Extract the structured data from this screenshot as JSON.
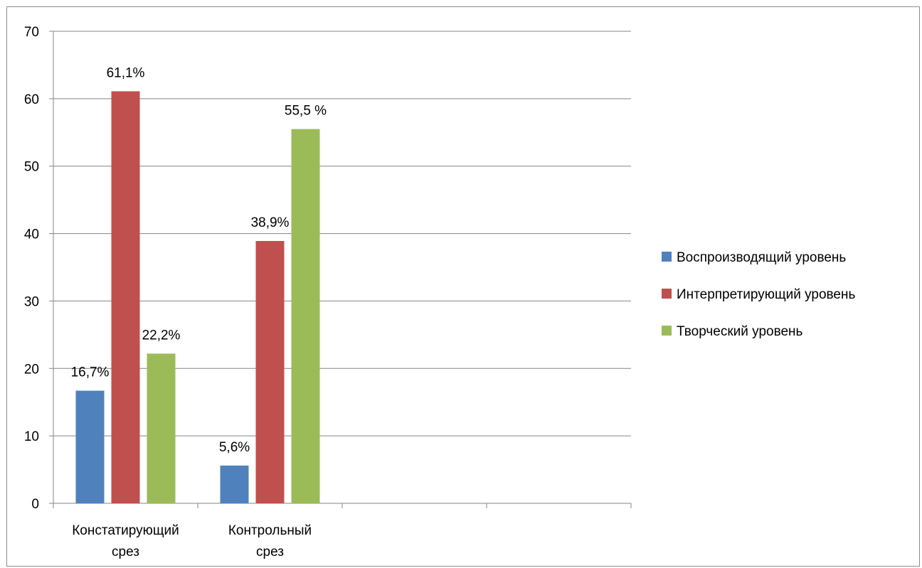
{
  "chart_data": {
    "type": "bar",
    "categories": [
      "Констатирующий\nсрез",
      "Контрольный\nсрез",
      "",
      ""
    ],
    "series": [
      {
        "name": "Воспроизводящий уровень",
        "color": "#4f81bd",
        "values": [
          16.7,
          5.6,
          null,
          null
        ],
        "labels": [
          "16,7%",
          "5,6%",
          "",
          ""
        ]
      },
      {
        "name": "Интерпретирующий уровень",
        "color": "#c0504d",
        "values": [
          61.1,
          38.9,
          null,
          null
        ],
        "labels": [
          "61,1%",
          "38,9%",
          "",
          ""
        ]
      },
      {
        "name": "Творческий уровень",
        "color": "#9bbb59",
        "values": [
          22.2,
          55.5,
          null,
          null
        ],
        "labels": [
          "22,2%",
          "55,5 %",
          "",
          ""
        ]
      }
    ],
    "yticks": [
      "0",
      "10",
      "20",
      "30",
      "40",
      "50",
      "60",
      "70"
    ],
    "ylim": [
      0,
      70
    ],
    "grid": true,
    "legend_position": "right"
  }
}
